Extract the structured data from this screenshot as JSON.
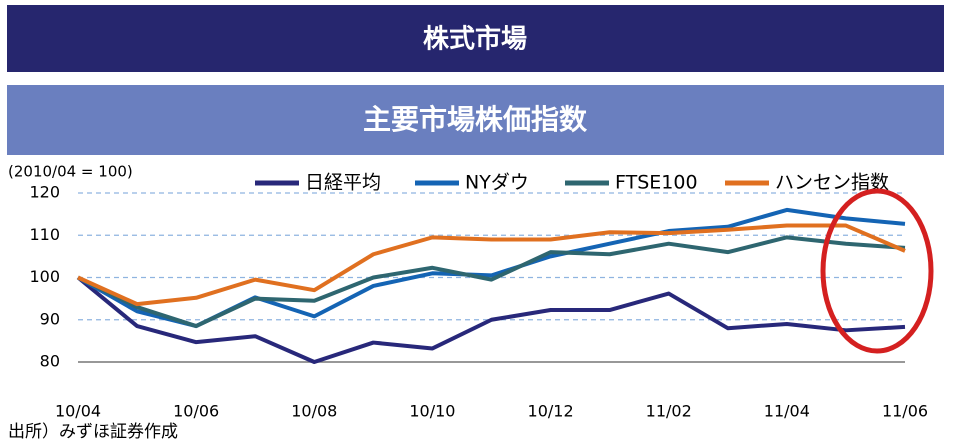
{
  "header": {
    "title": "株式市場"
  },
  "chart_data": {
    "type": "line",
    "title": "主要市場株価指数",
    "ylabel": "(2010/04 = 100)",
    "source": "出所）みずほ証券作成",
    "categories": [
      "10/04",
      null,
      "10/06",
      null,
      "10/08",
      null,
      "10/10",
      null,
      "10/12",
      null,
      "11/02",
      null,
      "11/04",
      null,
      "11/06"
    ],
    "series": [
      {
        "name": "日経平均",
        "color": "#28287a",
        "values": [
          100,
          88.5,
          84.7,
          86.1,
          80,
          84.6,
          83.2,
          90,
          92.3,
          92.3,
          96.2,
          88,
          89,
          87.5,
          88.3
        ]
      },
      {
        "name": "NYダウ",
        "color": "#1464b4",
        "values": [
          100,
          92,
          88.5,
          95.3,
          90.8,
          98,
          101,
          100.5,
          105,
          108,
          111,
          112,
          116,
          114,
          112.7
        ]
      },
      {
        "name": "FTSE100",
        "color": "#2e6670",
        "values": [
          100,
          93,
          88.5,
          95,
          94.5,
          100,
          102.3,
          99.5,
          106,
          105.5,
          108,
          106,
          109.5,
          108,
          107
        ]
      },
      {
        "name": "ハンセン指数",
        "color": "#e07020",
        "values": [
          100,
          93.7,
          95.2,
          99.5,
          97,
          105.5,
          109.5,
          109,
          109,
          110.7,
          110.5,
          111.3,
          112.3,
          112.3,
          106.3
        ]
      }
    ],
    "ylim": [
      80,
      120
    ],
    "yticks": [
      80,
      90,
      100,
      110,
      120
    ],
    "grid": true,
    "legend": "top"
  }
}
